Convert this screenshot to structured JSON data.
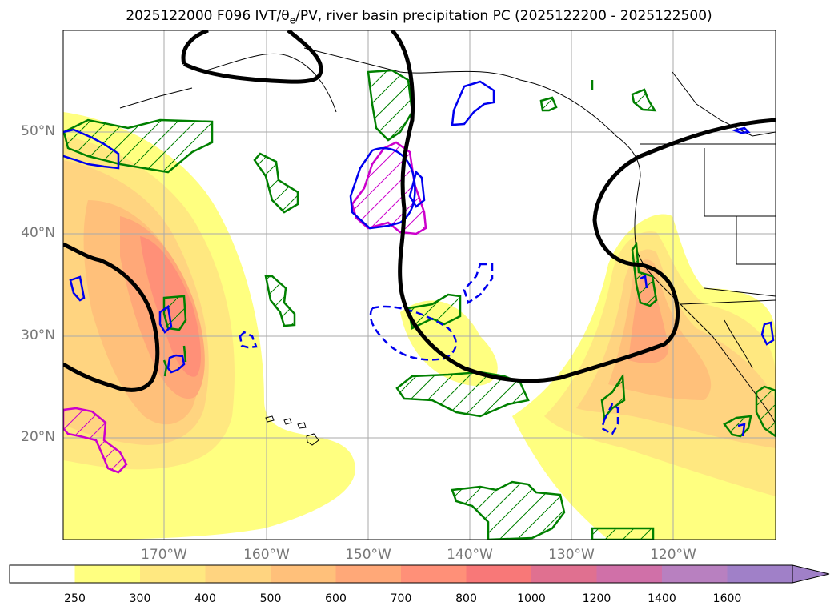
{
  "title": {
    "prefix": "2025122000 F096 IVT/θ",
    "subscript": "e",
    "suffix": "/PV, river basin precipitation PC (2025122200 - 2025122500)"
  },
  "axes": {
    "lat_labels": [
      "50°N",
      "40°N",
      "30°N",
      "20°N"
    ],
    "lon_labels": [
      "170°W",
      "160°W",
      "150°W",
      "140°W",
      "130°W",
      "120°W"
    ],
    "lat_values": [
      50,
      40,
      30,
      20
    ],
    "lon_values": [
      -170,
      -160,
      -150,
      -140,
      -130,
      -120
    ],
    "lon_range": [
      -180,
      -110
    ],
    "lat_range": [
      10,
      60
    ],
    "grid": true
  },
  "colorbar": {
    "labels": [
      "250",
      "300",
      "400",
      "500",
      "600",
      "700",
      "800",
      "1000",
      "1200",
      "1400",
      "1600"
    ],
    "colors": [
      "#ffffff",
      "#ffff80",
      "#ffe880",
      "#ffd480",
      "#ffc07a",
      "#ffa878",
      "#ff9078",
      "#f87878",
      "#e07090",
      "#d070a8",
      "#b880c0",
      "#a080c8"
    ],
    "extend": "max"
  },
  "colors": {
    "ivt_contours": "#ffd06a",
    "theta_contour": "#000000",
    "pv_positive": "#0000ee",
    "pv_negative": "#cc00cc",
    "precip_pc": "#008000",
    "grid": "#aaaaaa",
    "coast": "#000000"
  }
}
